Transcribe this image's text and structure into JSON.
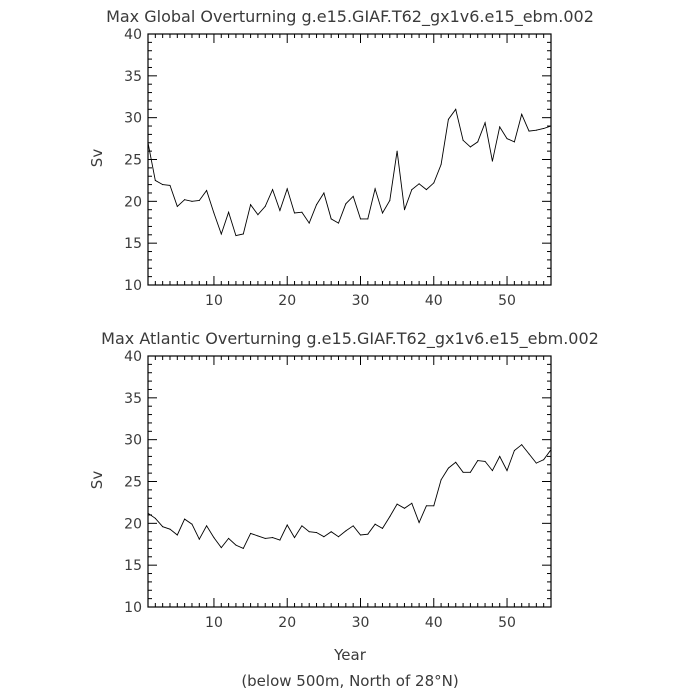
{
  "chart_data": [
    {
      "type": "line",
      "title": "Max Global Overturning g.e15.GIAF.T62_gx1v6.e15_ebm.002",
      "xlabel": "",
      "ylabel": "Sv",
      "xlim": [
        1,
        56
      ],
      "ylim": [
        10,
        40
      ],
      "x_ticks": [
        10,
        20,
        30,
        40,
        50
      ],
      "y_ticks": [
        10,
        15,
        20,
        25,
        30,
        35,
        40
      ],
      "grid": false,
      "series": [
        {
          "x": [
            1,
            2,
            3,
            4,
            5,
            6,
            7,
            8,
            9,
            10,
            11,
            12,
            13,
            14,
            15,
            16,
            17,
            18,
            19,
            20,
            21,
            22,
            23,
            24,
            25,
            26,
            27,
            28,
            29,
            30,
            31,
            32,
            33,
            34,
            35,
            36,
            37,
            38,
            39,
            40,
            41,
            42,
            43,
            44,
            45,
            46,
            47,
            48,
            49,
            50,
            51,
            52,
            53,
            54,
            55,
            56
          ],
          "values": [
            27.0,
            22.5,
            22.0,
            21.9,
            19.4,
            20.2,
            20.0,
            20.1,
            21.3,
            18.6,
            16.1,
            18.7,
            15.9,
            16.1,
            19.6,
            18.4,
            19.4,
            21.4,
            18.9,
            21.5,
            18.6,
            18.7,
            17.4,
            19.6,
            21.0,
            17.9,
            17.4,
            19.7,
            20.6,
            17.9,
            17.9,
            21.5,
            18.6,
            20.1,
            26.0,
            19.0,
            21.4,
            22.1,
            21.4,
            22.2,
            24.4,
            29.8,
            31.0,
            27.3,
            26.5,
            27.1,
            29.4,
            24.8,
            28.9,
            27.5,
            27.1,
            30.4,
            28.4,
            28.5,
            28.7,
            29.0
          ]
        }
      ]
    },
    {
      "type": "line",
      "title": "Max Atlantic Overturning g.e15.GIAF.T62_gx1v6.e15_ebm.002",
      "xlabel": "Year",
      "ylabel": "Sv",
      "xlim": [
        1,
        56
      ],
      "ylim": [
        10,
        40
      ],
      "x_ticks": [
        10,
        20,
        30,
        40,
        50
      ],
      "y_ticks": [
        10,
        15,
        20,
        25,
        30,
        35,
        40
      ],
      "grid": false,
      "series": [
        {
          "x": [
            1,
            2,
            3,
            4,
            5,
            6,
            7,
            8,
            9,
            10,
            11,
            12,
            13,
            14,
            15,
            16,
            17,
            18,
            19,
            20,
            21,
            22,
            23,
            24,
            25,
            26,
            27,
            28,
            29,
            30,
            31,
            32,
            33,
            34,
            35,
            36,
            37,
            38,
            39,
            40,
            41,
            42,
            43,
            44,
            45,
            46,
            47,
            48,
            49,
            50,
            51,
            52,
            53,
            54,
            55,
            56
          ],
          "values": [
            21.2,
            20.6,
            19.6,
            19.3,
            18.6,
            20.5,
            19.9,
            18.1,
            19.7,
            18.3,
            17.1,
            18.2,
            17.4,
            17.0,
            18.8,
            18.5,
            18.2,
            18.3,
            18.0,
            19.8,
            18.3,
            19.7,
            19.0,
            18.9,
            18.4,
            19.0,
            18.4,
            19.1,
            19.7,
            18.6,
            18.7,
            19.9,
            19.4,
            20.8,
            22.3,
            21.8,
            22.4,
            20.1,
            22.1,
            22.1,
            25.2,
            26.6,
            27.3,
            26.1,
            26.1,
            27.5,
            27.4,
            26.3,
            28.0,
            26.3,
            28.7,
            29.4,
            28.3,
            27.2,
            27.6,
            28.8
          ]
        }
      ]
    }
  ],
  "footnote": "(below 500m, North of 28°N)"
}
